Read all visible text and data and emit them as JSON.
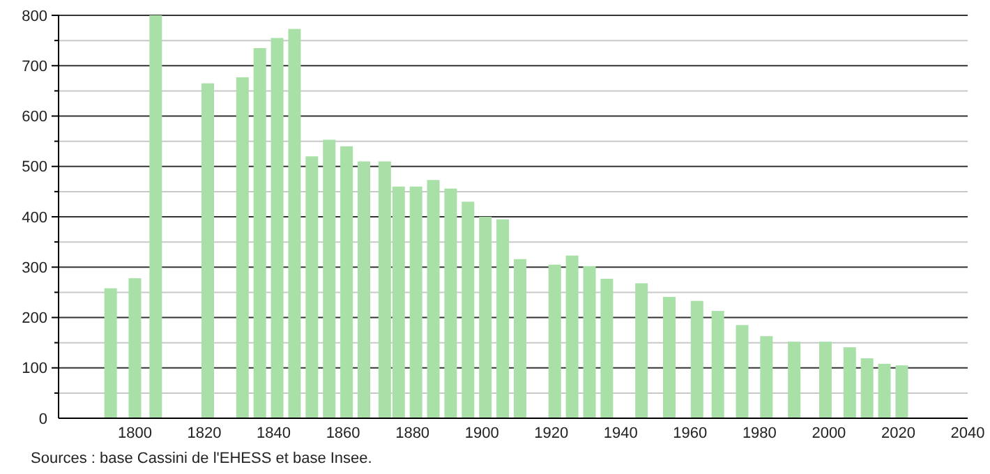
{
  "chart_data": {
    "type": "bar",
    "color": "#a8e0a8",
    "x": [
      1793,
      1800,
      1806,
      1821,
      1831,
      1836,
      1841,
      1846,
      1851,
      1856,
      1861,
      1866,
      1872,
      1876,
      1881,
      1886,
      1891,
      1896,
      1901,
      1906,
      1911,
      1921,
      1926,
      1931,
      1936,
      1946,
      1954,
      1962,
      1968,
      1975,
      1982,
      1990,
      1999,
      2006,
      2011,
      2016,
      2021
    ],
    "values": [
      258,
      278,
      800,
      665,
      677,
      735,
      755,
      773,
      520,
      553,
      540,
      510,
      510,
      460,
      460,
      473,
      456,
      430,
      400,
      395,
      316,
      305,
      323,
      302,
      277,
      268,
      241,
      233,
      213,
      185,
      163,
      152,
      152,
      141,
      119,
      108,
      105
    ],
    "xlim": [
      1778,
      2040
    ],
    "xticks": [
      1800,
      1820,
      1840,
      1860,
      1880,
      1900,
      1920,
      1940,
      1960,
      1980,
      2000,
      2020,
      2040
    ],
    "ylim": [
      0,
      800
    ],
    "yticks": [
      0,
      {
        "value": 50,
        "label": null
      },
      100,
      {
        "value": 150,
        "label": null
      },
      200,
      {
        "value": 250,
        "label": null
      },
      300,
      {
        "value": 350,
        "label": null
      },
      400,
      {
        "value": 450,
        "label": null
      },
      500,
      {
        "value": 550,
        "label": null
      },
      600,
      {
        "value": 650,
        "label": null
      },
      700,
      {
        "value": 750,
        "label": null
      },
      800
    ],
    "grid": "y",
    "annotations": [
      "Sources : base Cassini de l'EHESS et base Insee."
    ]
  }
}
